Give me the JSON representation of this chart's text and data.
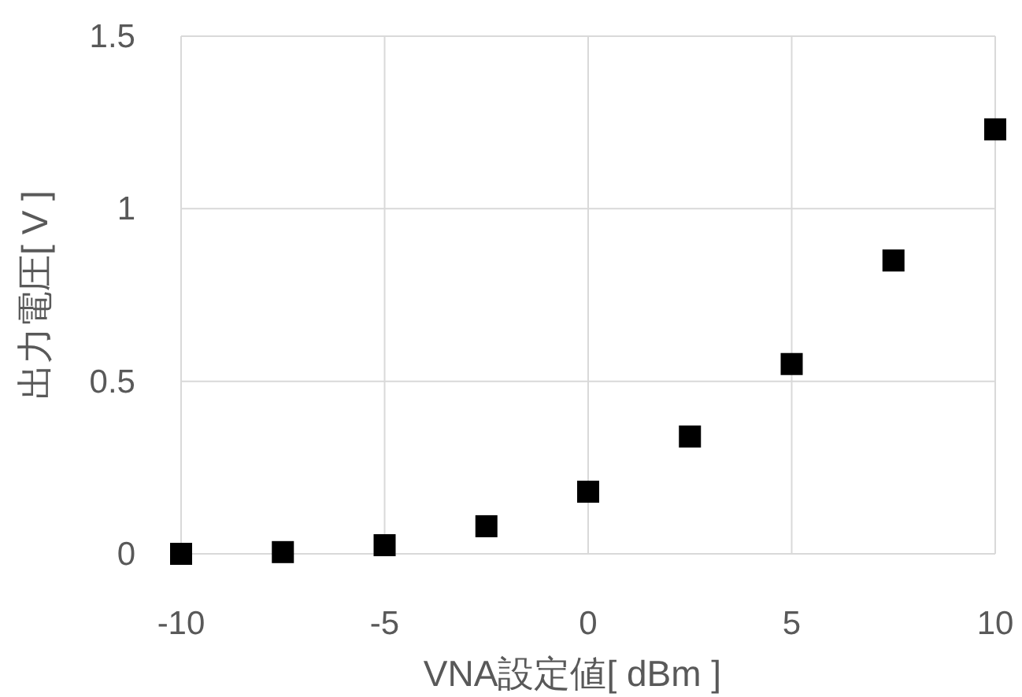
{
  "chart_data": {
    "type": "scatter",
    "xlabel": "VNA設定値[ dBm ]",
    "ylabel": "出力電圧[ V ]",
    "x": [
      -10,
      -7.5,
      -5,
      -2.5,
      0,
      2.5,
      5,
      7.5,
      10
    ],
    "series": [
      {
        "color": "#000000",
        "values": [
          0.0,
          0.005,
          0.025,
          0.08,
          0.18,
          0.34,
          0.55,
          0.85,
          1.23
        ]
      }
    ],
    "xlim": [
      -10,
      10
    ],
    "xticks": [
      -10,
      -5,
      0,
      5,
      10
    ],
    "ylim": [
      0,
      1.5
    ],
    "yticks": [
      0,
      0.5,
      1,
      1.5
    ],
    "grid": true,
    "marker": "square"
  }
}
